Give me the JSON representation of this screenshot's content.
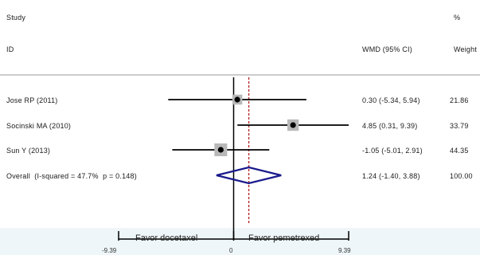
{
  "header": {
    "study": "Study",
    "id": "ID",
    "effect": "WMD (95% CI)",
    "percent": "%",
    "weight": "Weight"
  },
  "axis": {
    "left_label": "Favor docetaxel",
    "right_label": "Favor pemetrexed",
    "ticks": [
      "-9.39",
      "0",
      "9.39"
    ]
  },
  "colors": {
    "ci_line": "#000000",
    "box": "#b8b8b8",
    "diamond": "#1a1a8c",
    "ref_line": "#000000",
    "overall_line": "#b22222"
  },
  "chart_data": {
    "type": "forest",
    "xlim": [
      -9.39,
      9.39
    ],
    "xticks": [
      -9.39,
      0,
      9.39
    ],
    "null_line": 0,
    "overall_line": 1.24,
    "studies": [
      {
        "id": "Jose RP (2011)",
        "est": 0.3,
        "lo": -5.34,
        "hi": 5.94,
        "ci_text": "0.30 (-5.34, 5.94)",
        "weight": 21.86,
        "weight_text": "21.86"
      },
      {
        "id": "Socinski MA (2010)",
        "est": 4.85,
        "lo": 0.31,
        "hi": 9.39,
        "ci_text": "4.85 (0.31, 9.39)",
        "weight": 33.79,
        "weight_text": "33.79"
      },
      {
        "id": "Sun Y (2013)",
        "est": -1.05,
        "lo": -5.01,
        "hi": 2.91,
        "ci_text": "-1.05 (-5.01, 2.91)",
        "weight": 44.35,
        "weight_text": "44.35"
      }
    ],
    "overall": {
      "label": "Overall  (I-squared = 47.7%  p = 0.148)",
      "est": 1.24,
      "lo": -1.4,
      "hi": 3.88,
      "ci_text": "1.24 (-1.40, 3.88)",
      "weight_text": "100.00"
    }
  }
}
